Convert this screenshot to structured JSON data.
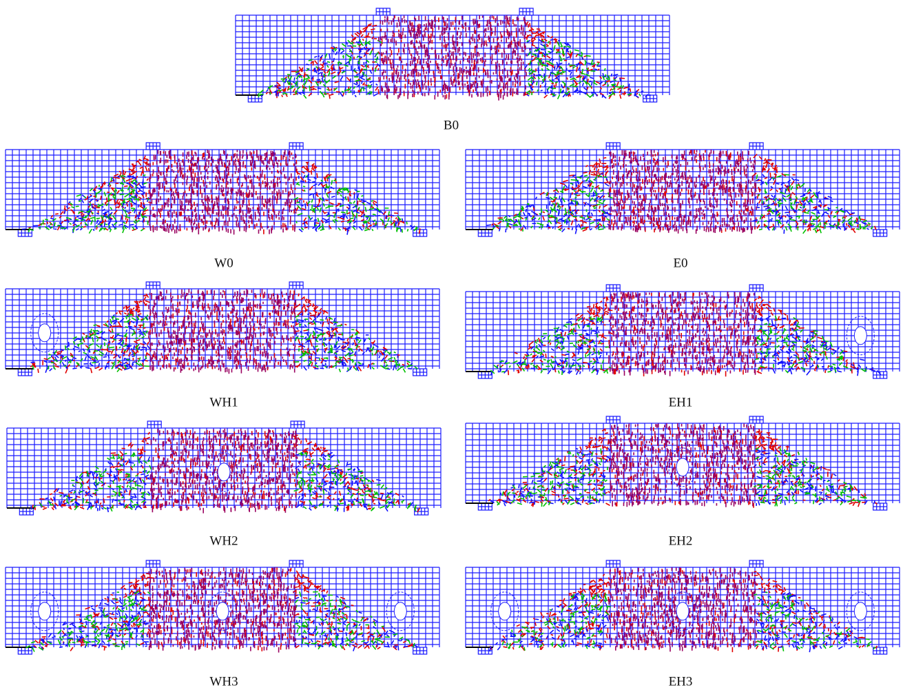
{
  "panels": [
    {
      "label": "B0"
    },
    {
      "label": "W0"
    },
    {
      "label": "E0"
    },
    {
      "label": "WH1"
    },
    {
      "label": "EH1"
    },
    {
      "label": "WH2"
    },
    {
      "label": "EH2"
    },
    {
      "label": "WH3"
    },
    {
      "label": "EH3"
    }
  ]
}
